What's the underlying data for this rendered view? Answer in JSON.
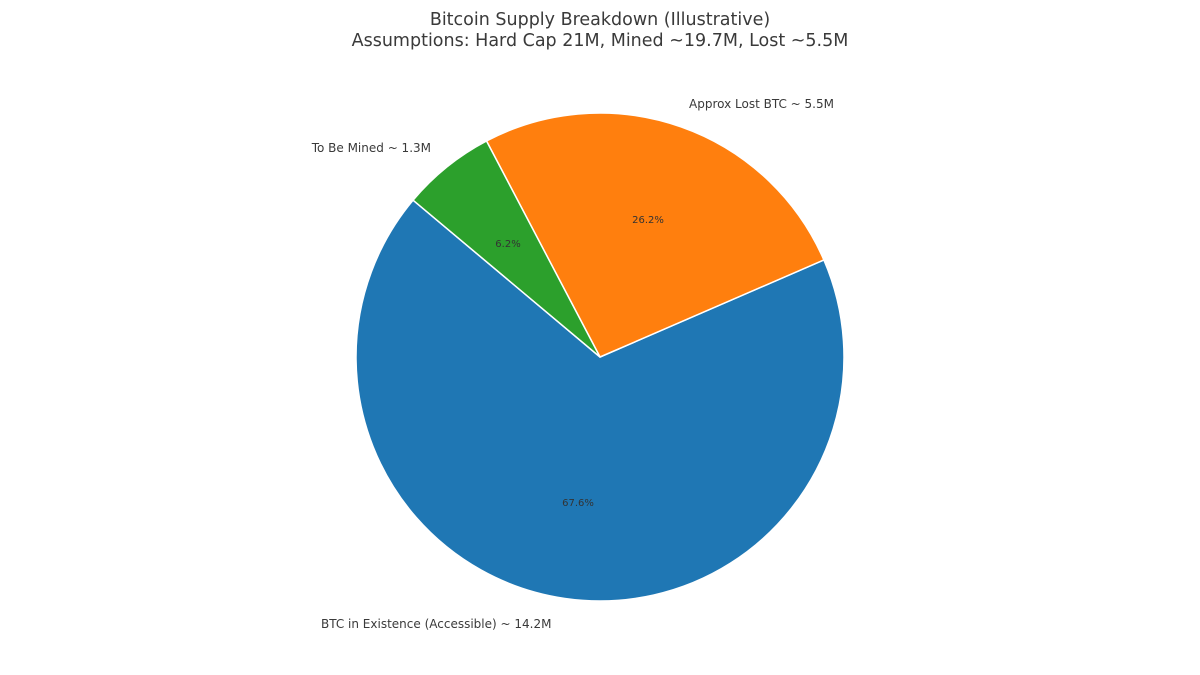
{
  "chart_data": {
    "type": "pie",
    "title": "Bitcoin Supply Breakdown (Illustrative)",
    "subtitle": "Assumptions: Hard Cap 21M, Mined ~19.7M, Lost ~5.5M",
    "categories": [
      "BTC in Existence (Accessible) ~ 14.2M",
      "Approx Lost BTC ~ 5.5M",
      "To Be Mined ~ 1.3M"
    ],
    "values": [
      14.2,
      5.5,
      1.3
    ],
    "units": "million BTC",
    "percent_labels": [
      "67.6%",
      "26.2%",
      "6.2%"
    ],
    "colors": [
      "#1f77b4",
      "#ff7f0e",
      "#2ca02c"
    ],
    "start_angle_deg": 140,
    "direction": "counterclockwise",
    "legend": "none (labels placed outside slices)"
  },
  "header": {
    "title": "Bitcoin Supply Breakdown (Illustrative)",
    "subtitle": "Assumptions: Hard Cap 21M, Mined ~19.7M, Lost ~5.5M"
  },
  "slices": [
    {
      "label": "BTC in Existence (Accessible) ~ 14.2M",
      "pct": "67.6%",
      "color": "#1f77b4"
    },
    {
      "label": "Approx Lost BTC ~ 5.5M",
      "pct": "26.2%",
      "color": "#ff7f0e"
    },
    {
      "label": "To Be Mined ~ 1.3M",
      "pct": "6.2%",
      "color": "#2ca02c"
    }
  ]
}
